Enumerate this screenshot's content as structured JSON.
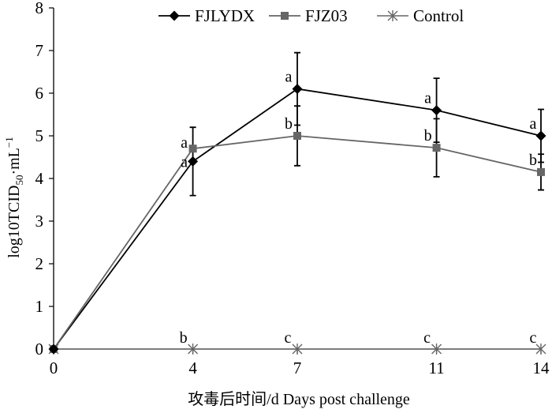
{
  "chart_data": {
    "type": "line",
    "x": [
      0,
      4,
      7,
      11,
      14
    ],
    "xlabel": "攻毒后时间/d  Days post challenge",
    "ylabel": "log10TCID50·mL⁻¹",
    "ylabel_parts": {
      "main": "log10TCID",
      "sub": "50",
      "dot": "·",
      "unit": "mL",
      "sup": "−1"
    },
    "xlim": [
      0,
      14
    ],
    "ylim": [
      0,
      8
    ],
    "x_ticks": [
      0,
      4,
      7,
      11,
      14
    ],
    "y_ticks": [
      0,
      1,
      2,
      3,
      4,
      5,
      6,
      7,
      8
    ],
    "grid": false,
    "legend_position": "top",
    "series": [
      {
        "name": "FJLYDX",
        "marker": "diamond",
        "color": "#000000",
        "values": [
          0,
          4.4,
          6.1,
          5.6,
          5.0
        ],
        "error": [
          0,
          0.8,
          0.85,
          0.75,
          0.62
        ],
        "sig_labels": [
          "",
          "a",
          "a",
          "a",
          "a"
        ]
      },
      {
        "name": "FJZ03",
        "marker": "square",
        "color": "#666666",
        "values": [
          0,
          4.7,
          5.0,
          4.72,
          4.15
        ],
        "error": [
          0,
          0.0,
          0.7,
          0.68,
          0.42
        ],
        "sig_labels": [
          "",
          "a",
          "b",
          "b",
          "b"
        ]
      },
      {
        "name": "Control",
        "marker": "asterisk",
        "color": "#666666",
        "values": [
          0,
          0,
          0,
          0,
          0
        ],
        "error": [
          0,
          0,
          0,
          0,
          0
        ],
        "sig_labels": [
          "",
          "b",
          "c",
          "c",
          "c"
        ]
      }
    ]
  }
}
